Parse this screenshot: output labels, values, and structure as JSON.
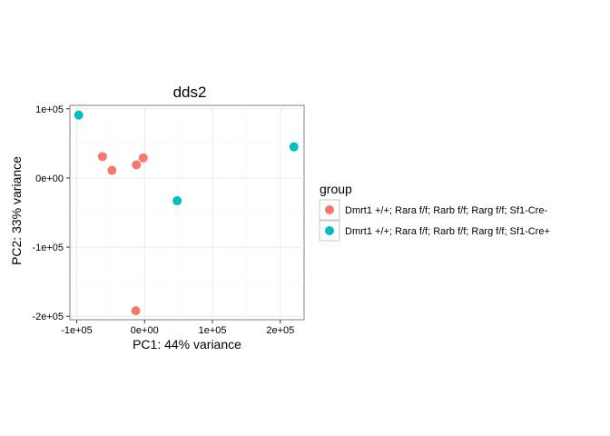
{
  "chart_data": {
    "type": "scatter",
    "title": "dds2",
    "xlabel": "PC1: 44% variance",
    "ylabel": "PC2: 33% variance",
    "xlim": [
      -110000,
      235000
    ],
    "ylim": [
      -205000,
      105000
    ],
    "x_ticks": [
      {
        "value": -100000,
        "label": "-1e+05"
      },
      {
        "value": 0,
        "label": "0e+00"
      },
      {
        "value": 100000,
        "label": "1e+05"
      },
      {
        "value": 200000,
        "label": "2e+05"
      }
    ],
    "y_ticks": [
      {
        "value": 100000,
        "label": "1e+05"
      },
      {
        "value": 0,
        "label": "0e+00"
      },
      {
        "value": -100000,
        "label": "-1e+05"
      },
      {
        "value": -200000,
        "label": "-2e+05"
      }
    ],
    "grid": true,
    "legend_position": "right",
    "legend_title": "group",
    "series": [
      {
        "name": "Dmrt1 +/+; Rara f/f; Rarb f/f; Rarg f/f; Sf1-Cre-",
        "color": "#F8766D",
        "points": [
          {
            "x": -62000,
            "y": 31000
          },
          {
            "x": -48000,
            "y": 11000
          },
          {
            "x": -12000,
            "y": 19000
          },
          {
            "x": -2000,
            "y": 29000
          },
          {
            "x": -13000,
            "y": -192000
          }
        ]
      },
      {
        "name": "Dmrt1 +/+; Rara f/f; Rarb f/f; Rarg f/f; Sf1-Cre+",
        "color": "#00BFC4",
        "points": [
          {
            "x": -97000,
            "y": 91000
          },
          {
            "x": 220000,
            "y": 45000
          },
          {
            "x": 48000,
            "y": -33000
          }
        ]
      }
    ]
  }
}
